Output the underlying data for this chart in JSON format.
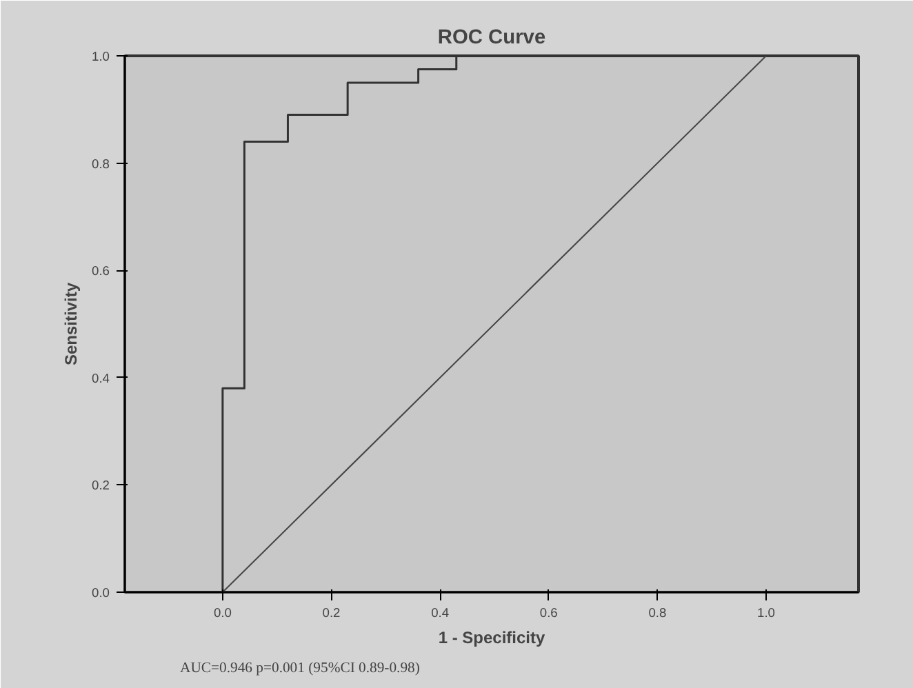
{
  "chart_data": {
    "type": "line",
    "title": "ROC Curve",
    "xlabel": "1 - Specificity",
    "ylabel": "Sensitivity",
    "xlim": [
      -0.18,
      1.17
    ],
    "ylim": [
      0,
      1
    ],
    "xticks": [
      {
        "value": 0,
        "label": "0.0"
      },
      {
        "value": 0.2,
        "label": "0.2"
      },
      {
        "value": 0.4,
        "label": "0.4"
      },
      {
        "value": 0.6,
        "label": "0.6"
      },
      {
        "value": 0.8,
        "label": "0.8"
      },
      {
        "value": 1,
        "label": "1.0"
      }
    ],
    "yticks": [
      {
        "value": 0,
        "label": "0.0"
      },
      {
        "value": 0.2,
        "label": "0.2"
      },
      {
        "value": 0.4,
        "label": "0.4"
      },
      {
        "value": 0.6,
        "label": "0.6"
      },
      {
        "value": 0.8,
        "label": "0.8"
      },
      {
        "value": 1,
        "label": "1.0"
      }
    ],
    "grid": false,
    "marker": "none",
    "series": [
      {
        "type": "step",
        "color": "#333333",
        "x": [
          0,
          0,
          0.04,
          0.12,
          0.23,
          0.36,
          0.43,
          1
        ],
        "values": [
          0,
          0.38,
          0.84,
          0.89,
          0.95,
          0.975,
          1,
          1
        ]
      },
      {
        "color": "#444444",
        "x": [
          0,
          1
        ],
        "values": [
          0,
          1
        ]
      }
    ],
    "annotations": [
      "AUC=0.946  p=0.001 (95%CI 0.89-0.98)"
    ]
  }
}
